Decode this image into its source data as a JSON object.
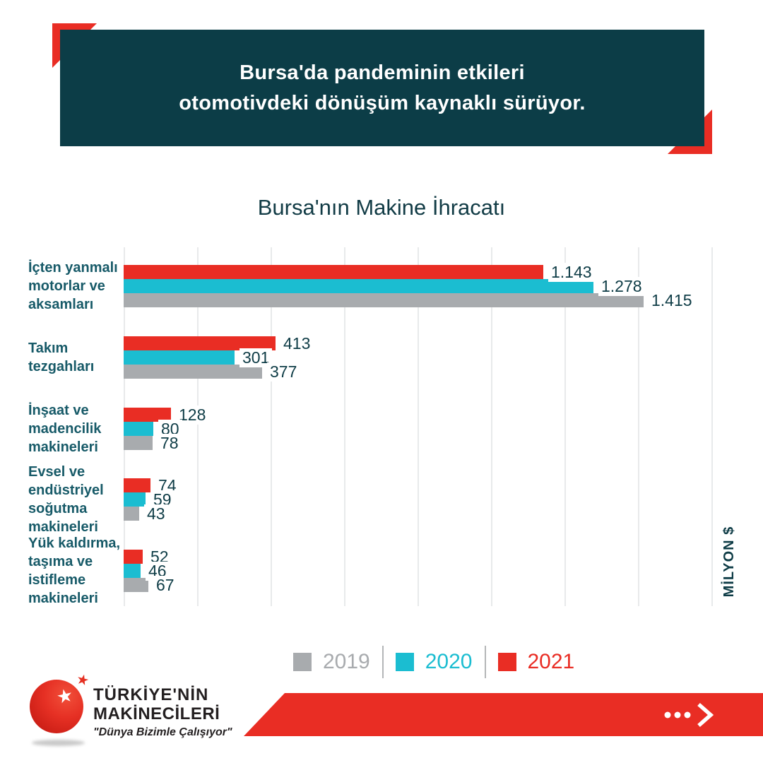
{
  "header": {
    "line1": "Bursa'da pandeminin etkileri",
    "line2": "otomotivdeki dönüşüm kaynaklı sürüyor.",
    "bg_color": "#0c3d47",
    "accent_color": "#e92d24"
  },
  "chart_data": {
    "type": "bar",
    "orientation": "horizontal",
    "title": "Bursa'nın Makine İhracatı",
    "unit_label": "MİLYON $",
    "categories": [
      "İçten yanmalı motorlar ve aksamları",
      "Takım tezgahları",
      "İnşaat ve madencilik makineleri",
      "Evsel ve endüstriyel soğutma makineleri",
      "Yük kaldırma, taşıma ve istifleme makineleri"
    ],
    "series": [
      {
        "name": "2021",
        "color": "#e92d24",
        "values": [
          1143,
          413,
          128,
          74,
          52
        ],
        "value_labels": [
          "1.143",
          "413",
          "128",
          "74",
          "52"
        ]
      },
      {
        "name": "2020",
        "color": "#1bbdd1",
        "values": [
          1278,
          301,
          80,
          59,
          46
        ],
        "value_labels": [
          "1.278",
          "301",
          "80",
          "59",
          "46"
        ]
      },
      {
        "name": "2019",
        "color": "#a8abae",
        "values": [
          1415,
          377,
          78,
          43,
          67
        ],
        "value_labels": [
          "1.415",
          "377",
          "78",
          "43",
          "67"
        ]
      }
    ],
    "xlim": [
      0,
      1600
    ],
    "gridline_interval": 200,
    "grid": true,
    "legend_position": "bottom"
  },
  "legend": {
    "items": [
      {
        "label": "2019",
        "color": "#a8abae"
      },
      {
        "label": "2020",
        "color": "#1bbdd1"
      },
      {
        "label": "2021",
        "color": "#e92d24"
      }
    ]
  },
  "logo": {
    "line1": "TÜRKİYE'NİN",
    "line2": "MAKİNECİLERİ",
    "tagline": "\"Dünya Bizimle Çalışıyor\"",
    "star_glyph": "★"
  },
  "footer": {
    "arrow_icon": "ellipsis-chevron-right"
  }
}
